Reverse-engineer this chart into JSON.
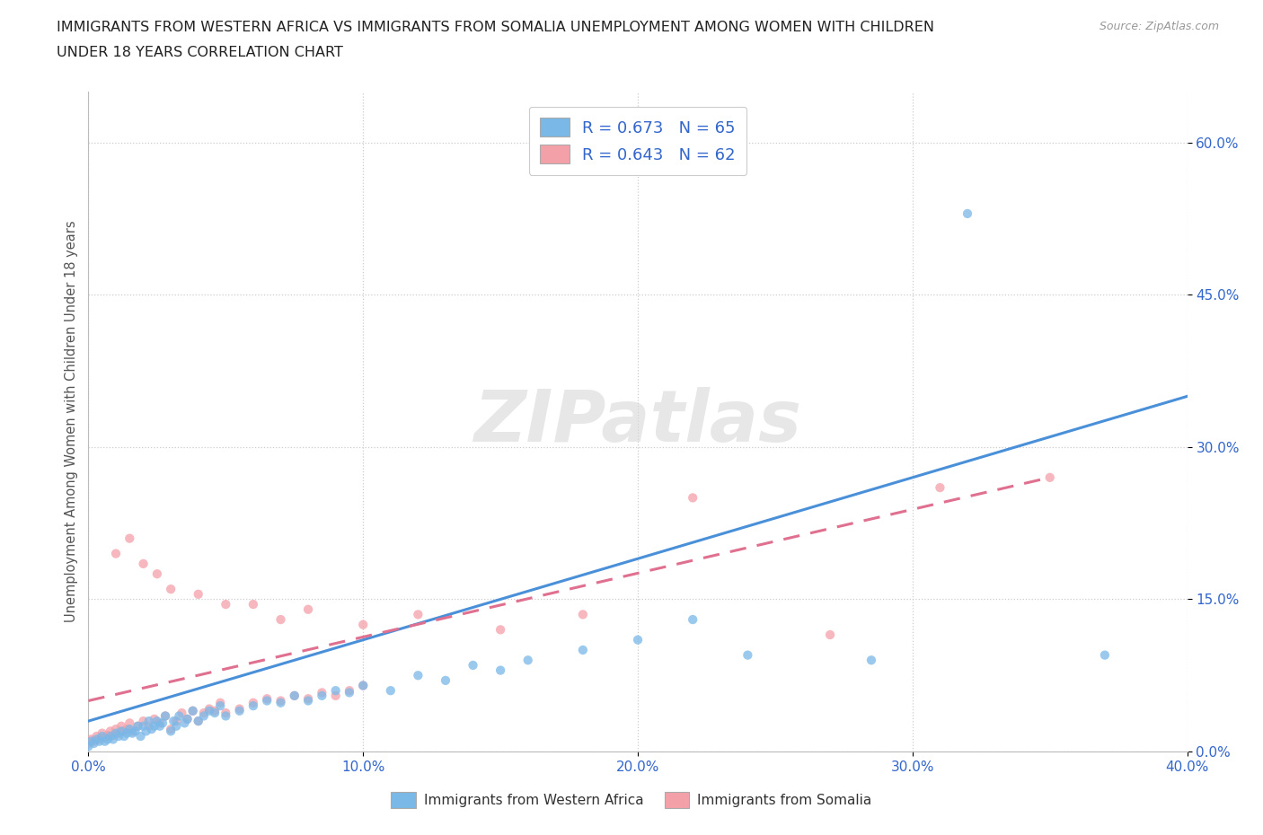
{
  "title_line1": "IMMIGRANTS FROM WESTERN AFRICA VS IMMIGRANTS FROM SOMALIA UNEMPLOYMENT AMONG WOMEN WITH CHILDREN",
  "title_line2": "UNDER 18 YEARS CORRELATION CHART",
  "source": "Source: ZipAtlas.com",
  "ylabel": "Unemployment Among Women with Children Under 18 years",
  "xlim": [
    0.0,
    0.4
  ],
  "ylim": [
    0.0,
    0.65
  ],
  "watermark": "ZIPatlas",
  "legend_r1": "R = 0.673   N = 65",
  "legend_r2": "R = 0.643   N = 62",
  "color_western": "#7ab8e8",
  "color_somalia": "#f4a0a8",
  "color_line_western": "#4a90d9",
  "color_line_somalia": "#e07090",
  "bg_color": "#ffffff",
  "grid_color": "#cccccc",
  "western_x": [
    0.0,
    0.001,
    0.002,
    0.003,
    0.004,
    0.005,
    0.006,
    0.007,
    0.008,
    0.009,
    0.01,
    0.011,
    0.012,
    0.013,
    0.014,
    0.015,
    0.016,
    0.017,
    0.018,
    0.019,
    0.02,
    0.021,
    0.022,
    0.023,
    0.024,
    0.025,
    0.026,
    0.027,
    0.028,
    0.03,
    0.031,
    0.032,
    0.033,
    0.035,
    0.036,
    0.038,
    0.04,
    0.042,
    0.044,
    0.046,
    0.048,
    0.05,
    0.055,
    0.06,
    0.065,
    0.07,
    0.075,
    0.08,
    0.085,
    0.09,
    0.095,
    0.1,
    0.11,
    0.12,
    0.13,
    0.14,
    0.15,
    0.16,
    0.18,
    0.2,
    0.22,
    0.24,
    0.285,
    0.32,
    0.37
  ],
  "western_y": [
    0.005,
    0.01,
    0.008,
    0.012,
    0.01,
    0.015,
    0.01,
    0.012,
    0.015,
    0.012,
    0.018,
    0.015,
    0.02,
    0.015,
    0.018,
    0.022,
    0.018,
    0.02,
    0.025,
    0.015,
    0.025,
    0.02,
    0.03,
    0.022,
    0.025,
    0.03,
    0.025,
    0.028,
    0.035,
    0.02,
    0.03,
    0.025,
    0.035,
    0.028,
    0.032,
    0.04,
    0.03,
    0.035,
    0.04,
    0.038,
    0.045,
    0.035,
    0.04,
    0.045,
    0.05,
    0.048,
    0.055,
    0.05,
    0.055,
    0.06,
    0.058,
    0.065,
    0.06,
    0.075,
    0.07,
    0.085,
    0.08,
    0.09,
    0.1,
    0.11,
    0.13,
    0.095,
    0.09,
    0.53,
    0.095
  ],
  "somalia_x": [
    0.0,
    0.001,
    0.002,
    0.003,
    0.004,
    0.005,
    0.006,
    0.007,
    0.008,
    0.009,
    0.01,
    0.011,
    0.012,
    0.013,
    0.014,
    0.015,
    0.016,
    0.018,
    0.02,
    0.022,
    0.024,
    0.026,
    0.028,
    0.03,
    0.032,
    0.034,
    0.036,
    0.038,
    0.04,
    0.042,
    0.044,
    0.046,
    0.048,
    0.05,
    0.055,
    0.06,
    0.065,
    0.07,
    0.075,
    0.08,
    0.085,
    0.09,
    0.095,
    0.1,
    0.01,
    0.015,
    0.02,
    0.025,
    0.03,
    0.04,
    0.05,
    0.06,
    0.07,
    0.08,
    0.1,
    0.12,
    0.15,
    0.18,
    0.22,
    0.27,
    0.31,
    0.35
  ],
  "somalia_y": [
    0.008,
    0.012,
    0.01,
    0.015,
    0.012,
    0.018,
    0.014,
    0.016,
    0.02,
    0.016,
    0.022,
    0.018,
    0.025,
    0.02,
    0.022,
    0.028,
    0.02,
    0.025,
    0.03,
    0.025,
    0.032,
    0.028,
    0.035,
    0.022,
    0.03,
    0.038,
    0.032,
    0.04,
    0.03,
    0.038,
    0.042,
    0.04,
    0.048,
    0.038,
    0.042,
    0.048,
    0.052,
    0.05,
    0.055,
    0.052,
    0.058,
    0.055,
    0.06,
    0.065,
    0.195,
    0.21,
    0.185,
    0.175,
    0.16,
    0.155,
    0.145,
    0.145,
    0.13,
    0.14,
    0.125,
    0.135,
    0.12,
    0.135,
    0.25,
    0.115,
    0.26,
    0.27
  ]
}
